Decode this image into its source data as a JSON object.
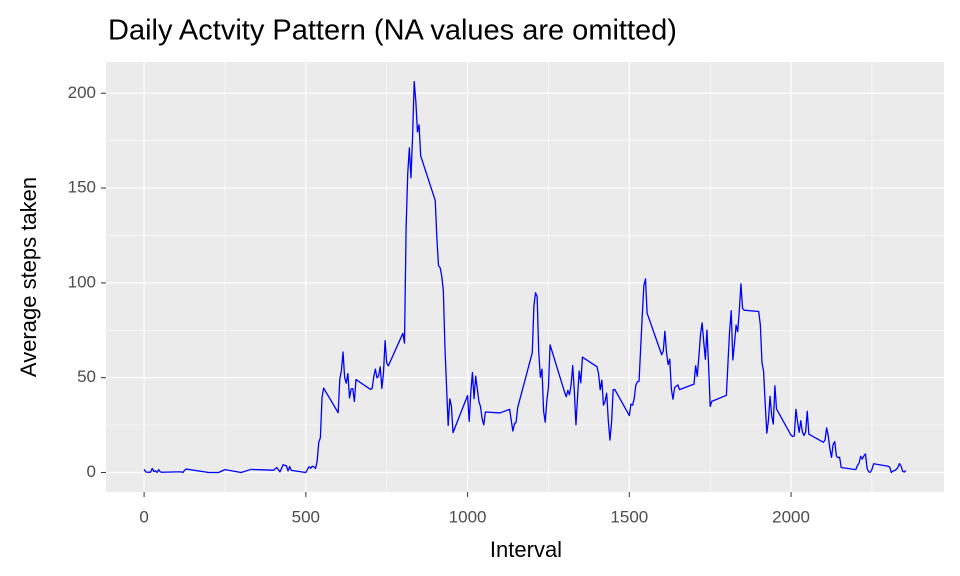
{
  "chart_data": {
    "type": "line",
    "title": "Daily Actvity Pattern (NA values are omitted)",
    "x_label": "Interval",
    "y_label": "Average steps taken",
    "x": [
      0,
      5,
      10,
      15,
      20,
      25,
      30,
      35,
      40,
      45,
      50,
      55,
      100,
      115,
      120,
      125,
      130,
      200,
      230,
      250,
      300,
      330,
      400,
      410,
      420,
      430,
      440,
      445,
      450,
      455,
      500,
      505,
      510,
      515,
      520,
      525,
      530,
      535,
      540,
      545,
      550,
      555,
      600,
      605,
      610,
      615,
      620,
      625,
      630,
      635,
      640,
      645,
      650,
      655,
      700,
      705,
      710,
      715,
      720,
      725,
      730,
      735,
      740,
      745,
      750,
      755,
      800,
      805,
      810,
      815,
      820,
      825,
      830,
      835,
      840,
      845,
      850,
      855,
      900,
      905,
      910,
      915,
      920,
      925,
      930,
      935,
      940,
      945,
      950,
      955,
      1000,
      1005,
      1010,
      1015,
      1020,
      1025,
      1030,
      1035,
      1040,
      1045,
      1050,
      1055,
      1100,
      1130,
      1140,
      1145,
      1150,
      1155,
      1200,
      1205,
      1210,
      1215,
      1220,
      1225,
      1230,
      1235,
      1240,
      1245,
      1250,
      1255,
      1300,
      1305,
      1310,
      1315,
      1320,
      1325,
      1330,
      1335,
      1340,
      1345,
      1350,
      1355,
      1400,
      1405,
      1410,
      1415,
      1420,
      1425,
      1430,
      1435,
      1440,
      1445,
      1450,
      1455,
      1500,
      1505,
      1510,
      1515,
      1520,
      1525,
      1530,
      1535,
      1540,
      1545,
      1550,
      1555,
      1600,
      1605,
      1610,
      1615,
      1620,
      1625,
      1630,
      1635,
      1640,
      1645,
      1650,
      1655,
      1700,
      1705,
      1710,
      1715,
      1720,
      1725,
      1730,
      1735,
      1740,
      1745,
      1750,
      1755,
      1800,
      1805,
      1810,
      1815,
      1820,
      1825,
      1830,
      1835,
      1840,
      1845,
      1850,
      1855,
      1900,
      1905,
      1910,
      1915,
      1920,
      1925,
      1930,
      1935,
      1940,
      1945,
      1950,
      1955,
      2000,
      2005,
      2010,
      2015,
      2020,
      2025,
      2030,
      2035,
      2040,
      2045,
      2050,
      2055,
      2100,
      2105,
      2110,
      2115,
      2120,
      2125,
      2130,
      2135,
      2140,
      2145,
      2150,
      2155,
      2200,
      2205,
      2210,
      2215,
      2220,
      2225,
      2230,
      2235,
      2240,
      2245,
      2250,
      2255,
      2300,
      2305,
      2310,
      2315,
      2320,
      2325,
      2330,
      2335,
      2340,
      2345,
      2350,
      2355
    ],
    "series": [
      {
        "name": "Average steps taken",
        "color": "#0000ff",
        "values": [
          1.7,
          0.3,
          0.1,
          0.2,
          0.1,
          2.1,
          0.5,
          0.9,
          0,
          1.5,
          0.3,
          0.1,
          0.3,
          0.3,
          0,
          1.1,
          1.8,
          0,
          0,
          1.5,
          0,
          1.6,
          1.2,
          2.6,
          0.3,
          4.1,
          3.5,
          0.8,
          3.1,
          1.1,
          0,
          1.6,
          3,
          2.2,
          3.3,
          3,
          2.1,
          6,
          16,
          18.3,
          39.5,
          44.5,
          31.5,
          49.3,
          53.8,
          63.5,
          50,
          47.1,
          52.2,
          39.3,
          44,
          44.2,
          37.4,
          49,
          43.8,
          44.4,
          50.5,
          54.5,
          49.9,
          51,
          55.7,
          44.3,
          52.3,
          69.5,
          57.8,
          56.2,
          73.4,
          68.2,
          129.4,
          157.5,
          171.2,
          155.4,
          177.3,
          206.2,
          195.9,
          179.6,
          183.4,
          167,
          143.5,
          124,
          109.1,
          108.1,
          103.7,
          96,
          66.2,
          45.2,
          24.8,
          38.8,
          35,
          21,
          40.6,
          27,
          42.4,
          52.7,
          38.9,
          50.8,
          44.3,
          37.4,
          34.7,
          28.3,
          25.1,
          31.9,
          31.4,
          33.3,
          21.8,
          25.7,
          26.5,
          34.3,
          63.2,
          87.7,
          94.8,
          92.8,
          63.4,
          50.2,
          54.5,
          32.4,
          26.5,
          37.7,
          45,
          67.3,
          42.3,
          39.9,
          43.3,
          41,
          46.2,
          56.4,
          42.8,
          25.1,
          40,
          53.5,
          47.3,
          60.8,
          55.8,
          52,
          43.6,
          48.7,
          35.5,
          37.5,
          41.8,
          27.5,
          17.1,
          26.1,
          43.6,
          43.8,
          30,
          36.1,
          35.5,
          38.8,
          46,
          47.8,
          48.1,
          65.3,
          82.9,
          98.7,
          102.1,
          84,
          62.1,
          64.1,
          74.5,
          63.2,
          56.9,
          59.8,
          43.9,
          38.6,
          44.7,
          45.5,
          46.2,
          43.7,
          46.6,
          56.3,
          50.7,
          61.2,
          72.7,
          78.9,
          68.9,
          59.7,
          75.1,
          56.5,
          34.8,
          37.5,
          40.7,
          58,
          74.7,
          85.3,
          59.3,
          67.8,
          77.7,
          74.2,
          85.3,
          99.5,
          86.6,
          85.6,
          84.9,
          77.8,
          58,
          53.4,
          36.3,
          20.7,
          27.4,
          40.2,
          30.2,
          25.5,
          45.7,
          33.5,
          19.6,
          19,
          19.3,
          33.3,
          26.8,
          21.2,
          27.3,
          21.3,
          19.5,
          21.3,
          32.3,
          20.2,
          15.9,
          17.2,
          23.5,
          19.2,
          12.5,
          8,
          14.7,
          16.3,
          8.7,
          7.8,
          8.1,
          2.6,
          1.5,
          3.7,
          4.8,
          8.5,
          7.1,
          8.7,
          9.8,
          2.2,
          0.3,
          0.1,
          1.6,
          4.6,
          3.3,
          2.8,
          0,
          0.8,
          1,
          1.6,
          2.6,
          4.7,
          3.3,
          0.6,
          0.2,
          1.1
        ]
      }
    ],
    "xlim": [
      -117.75,
      2472.75
    ],
    "xticks": [
      0,
      500,
      1000,
      1500,
      2000
    ],
    "ylim": [
      -10.3,
      216.5
    ],
    "yticks": [
      0,
      50,
      100,
      150,
      200
    ],
    "grid": true,
    "minor_grid": true,
    "panel_color": "#ebebeb"
  }
}
